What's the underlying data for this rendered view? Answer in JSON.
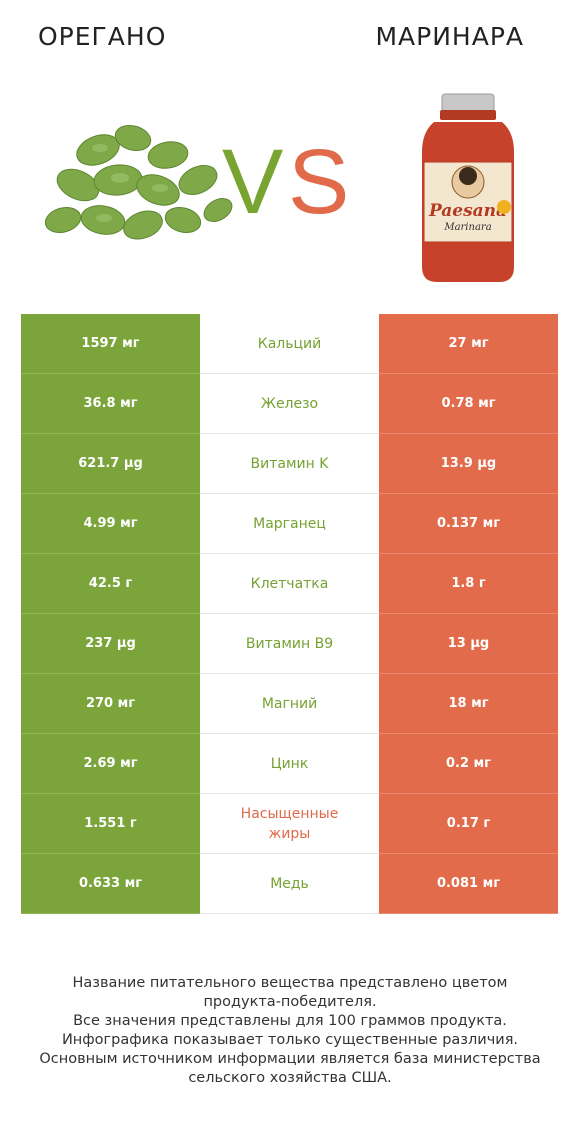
{
  "header": {
    "left_title": "ОРЕГАНО",
    "right_title": "МАРИНАРА",
    "vs_v": "V",
    "vs_s": "S"
  },
  "colors": {
    "left_winner": "#7ba43a",
    "right_winner": "#e26b4b"
  },
  "jar_label": {
    "brand": "Paesana",
    "product": "Marinara"
  },
  "rows": [
    {
      "left": "1597 мг",
      "name": "Кальций",
      "right": "27 мг",
      "winner": "left"
    },
    {
      "left": "36.8 мг",
      "name": "Железо",
      "right": "0.78 мг",
      "winner": "left"
    },
    {
      "left": "621.7 µg",
      "name": "Витамин K",
      "right": "13.9 µg",
      "winner": "left"
    },
    {
      "left": "4.99 мг",
      "name": "Марганец",
      "right": "0.137 мг",
      "winner": "left"
    },
    {
      "left": "42.5 г",
      "name": "Клетчатка",
      "right": "1.8 г",
      "winner": "left"
    },
    {
      "left": "237 µg",
      "name": "Витамин B9",
      "right": "13 µg",
      "winner": "left"
    },
    {
      "left": "270 мг",
      "name": "Магний",
      "right": "18 мг",
      "winner": "left"
    },
    {
      "left": "2.69 мг",
      "name": "Цинк",
      "right": "0.2 мг",
      "winner": "left"
    },
    {
      "left": "1.551 г",
      "name": "Насыщенные жиры",
      "right": "0.17 г",
      "winner": "right"
    },
    {
      "left": "0.633 мг",
      "name": "Медь",
      "right": "0.081 мг",
      "winner": "left"
    }
  ],
  "footer": {
    "line1": "Название питательного вещества представлено цветом",
    "line2": "продукта-победителя.",
    "line3": "Все значения представлены для 100 граммов продукта.",
    "line4": "Инфографика показывает только существенные различия.",
    "line5": "Основным источником информации является база министерства",
    "line6": "сельского хозяйства США."
  }
}
